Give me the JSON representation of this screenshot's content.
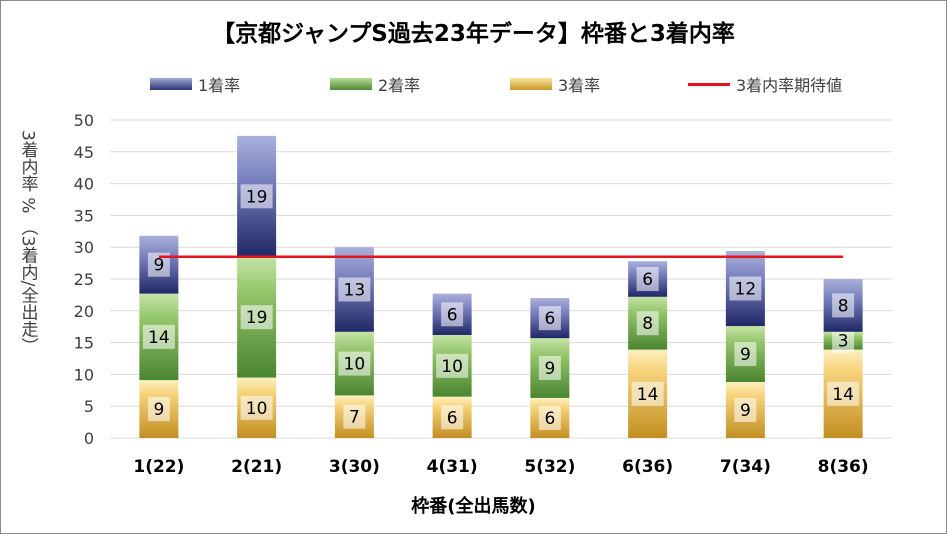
{
  "chart_data": {
    "type": "bar",
    "stacked": true,
    "title": "【京都ジャンプS過去23年データ】枠番と3着内率",
    "xlabel": "枠番(全出馬数)",
    "ylabel": "3着内率 % （3着内/全出走）",
    "ylim": [
      0,
      50
    ],
    "yticks": [
      0,
      5,
      10,
      15,
      20,
      25,
      30,
      35,
      40,
      45,
      50
    ],
    "grid": true,
    "legend_position": "top",
    "categories": [
      "1(22)",
      "2(21)",
      "3(30)",
      "4(31)",
      "5(32)",
      "6(36)",
      "7(34)",
      "8(36)"
    ],
    "series": [
      {
        "name": "3着率",
        "color": "#e0b84a",
        "values": [
          9.1,
          9.5,
          6.7,
          6.5,
          6.3,
          13.9,
          8.8,
          13.9
        ],
        "labels": [
          "9",
          "10",
          "7",
          "6",
          "6",
          "14",
          "9",
          "14"
        ]
      },
      {
        "name": "2着率",
        "color": "#70a84a",
        "values": [
          13.6,
          19.0,
          10.0,
          9.7,
          9.4,
          8.3,
          8.8,
          2.8
        ],
        "labels": [
          "14",
          "19",
          "10",
          "10",
          "9",
          "8",
          "9",
          "3"
        ]
      },
      {
        "name": "1着率",
        "color": "#3c4a9a",
        "values": [
          9.1,
          19.0,
          13.3,
          6.5,
          6.3,
          5.6,
          11.8,
          8.3
        ],
        "labels": [
          "9",
          "19",
          "13",
          "6",
          "6",
          "6",
          "12",
          "8"
        ]
      }
    ],
    "reference_line": {
      "name": "3着内率期待値",
      "value": 28.5,
      "color": "#e8141b"
    }
  },
  "legend": [
    {
      "label": "1着率",
      "color": "#3c4a9a"
    },
    {
      "label": "2着率",
      "color": "#70a84a"
    },
    {
      "label": "3着率",
      "color": "#e0b84a"
    },
    {
      "label": "3着内率期待値",
      "color": "#e8141b"
    }
  ]
}
